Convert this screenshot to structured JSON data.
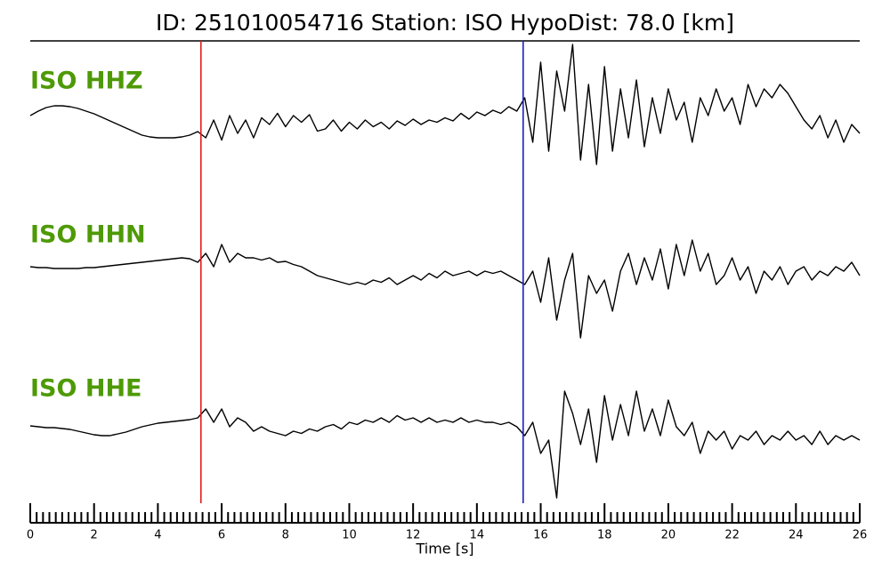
{
  "chart_data": {
    "type": "line",
    "title": "ID: 251010054716   Station: ISO   HypoDist:    78.0 [km]",
    "xlabel": "Time [s]",
    "xlim": [
      0,
      26
    ],
    "xticks": [
      0,
      2,
      4,
      6,
      8,
      10,
      12,
      14,
      16,
      18,
      20,
      22,
      24,
      26
    ],
    "xminorticks": [
      0.2,
      0.4,
      0.6,
      0.8,
      1,
      1.2,
      1.4,
      1.6,
      1.8,
      2.2,
      2.4,
      2.6,
      2.8,
      3,
      3.2,
      3.4,
      3.6,
      3.8,
      4.2,
      4.4,
      4.6,
      4.8,
      5,
      5.2,
      5.4,
      5.6,
      5.8,
      6.2,
      6.4,
      6.6,
      6.8,
      7,
      7.2,
      7.4,
      7.6,
      7.8,
      8.2,
      8.4,
      8.6,
      8.8,
      9,
      9.2,
      9.4,
      9.6,
      9.8,
      10.2,
      10.4,
      10.6,
      10.8,
      11,
      11.2,
      11.4,
      11.6,
      11.8,
      12.2,
      12.4,
      12.6,
      12.8,
      13,
      13.2,
      13.4,
      13.6,
      13.8,
      14.2,
      14.4,
      14.6,
      14.8,
      15,
      15.2,
      15.4,
      15.6,
      15.8,
      16.2,
      16.4,
      16.6,
      16.8,
      17,
      17.2,
      17.4,
      17.6,
      17.8,
      18.2,
      18.4,
      18.6,
      18.8,
      19,
      19.2,
      19.4,
      19.6,
      19.8,
      20.2,
      20.4,
      20.6,
      20.8,
      21,
      21.2,
      21.4,
      21.6,
      21.8,
      22.2,
      22.4,
      22.6,
      22.8,
      23,
      23.2,
      23.4,
      23.6,
      23.8,
      24.2,
      24.4,
      24.6,
      24.8,
      25,
      25.2,
      25.4,
      25.6,
      25.8
    ],
    "picks": [
      {
        "x": 5.35,
        "color": "#e41a1c"
      },
      {
        "x": 15.45,
        "color": "#1f1fbf"
      }
    ],
    "x": [
      0,
      0.25,
      0.5,
      0.75,
      1,
      1.25,
      1.5,
      1.75,
      2,
      2.25,
      2.5,
      2.75,
      3,
      3.25,
      3.5,
      3.75,
      4,
      4.25,
      4.5,
      4.75,
      5,
      5.25,
      5.5,
      5.75,
      6,
      6.25,
      6.5,
      6.75,
      7,
      7.25,
      7.5,
      7.75,
      8,
      8.25,
      8.5,
      8.75,
      9,
      9.25,
      9.5,
      9.75,
      10,
      10.25,
      10.5,
      10.75,
      11,
      11.25,
      11.5,
      11.75,
      12,
      12.25,
      12.5,
      12.75,
      13,
      13.25,
      13.5,
      13.75,
      14,
      14.25,
      14.5,
      14.75,
      15,
      15.25,
      15.5,
      15.75,
      16,
      16.25,
      16.5,
      16.75,
      17,
      17.25,
      17.5,
      17.75,
      18,
      18.25,
      18.5,
      18.75,
      19,
      19.25,
      19.5,
      19.75,
      20,
      20.25,
      20.5,
      20.75,
      21,
      21.25,
      21.5,
      21.75,
      22,
      22.25,
      22.5,
      22.75,
      23,
      23.25,
      23.5,
      23.75,
      24,
      24.25,
      24.5,
      24.75,
      25,
      25.25,
      25.5,
      25.75,
      26
    ],
    "label_color": "#4e9a06",
    "series": [
      {
        "name": "ISO HHZ",
        "color": "#000000",
        "values": [
          0.2,
          0.3,
          0.38,
          0.42,
          0.42,
          0.4,
          0.36,
          0.3,
          0.24,
          0.16,
          0.08,
          0.0,
          -0.08,
          -0.16,
          -0.24,
          -0.28,
          -0.3,
          -0.3,
          -0.3,
          -0.28,
          -0.24,
          -0.16,
          -0.3,
          0.1,
          -0.35,
          0.2,
          -0.2,
          0.1,
          -0.3,
          0.15,
          0.0,
          0.25,
          -0.05,
          0.2,
          0.05,
          0.22,
          -0.15,
          -0.1,
          0.1,
          -0.15,
          0.05,
          -0.1,
          0.1,
          -0.05,
          0.05,
          -0.1,
          0.08,
          -0.02,
          0.12,
          0.0,
          0.1,
          0.05,
          0.15,
          0.08,
          0.25,
          0.12,
          0.28,
          0.2,
          0.32,
          0.25,
          0.4,
          0.3,
          0.6,
          -0.4,
          1.4,
          -0.6,
          1.2,
          0.3,
          1.8,
          -0.8,
          0.9,
          -0.9,
          1.3,
          -0.6,
          0.8,
          -0.3,
          1.0,
          -0.5,
          0.6,
          -0.2,
          0.8,
          0.1,
          0.5,
          -0.4,
          0.6,
          0.2,
          0.8,
          0.3,
          0.6,
          0.0,
          0.9,
          0.4,
          0.8,
          0.6,
          0.9,
          0.7,
          0.4,
          0.1,
          -0.1,
          0.2,
          -0.3,
          0.1,
          -0.4,
          0.0,
          -0.2
        ]
      },
      {
        "name": "ISO HHN",
        "color": "#000000",
        "values": [
          0.0,
          -0.02,
          -0.02,
          -0.04,
          -0.04,
          -0.04,
          -0.04,
          -0.02,
          -0.02,
          0.0,
          0.02,
          0.04,
          0.06,
          0.08,
          0.1,
          0.12,
          0.14,
          0.16,
          0.18,
          0.2,
          0.18,
          0.1,
          0.3,
          0.0,
          0.5,
          0.1,
          0.3,
          0.2,
          0.2,
          0.15,
          0.2,
          0.1,
          0.12,
          0.05,
          0.0,
          -0.1,
          -0.2,
          -0.25,
          -0.3,
          -0.35,
          -0.4,
          -0.35,
          -0.4,
          -0.3,
          -0.35,
          -0.25,
          -0.4,
          -0.3,
          -0.2,
          -0.3,
          -0.15,
          -0.25,
          -0.1,
          -0.2,
          -0.15,
          -0.1,
          -0.2,
          -0.1,
          -0.15,
          -0.1,
          -0.2,
          -0.3,
          -0.4,
          -0.1,
          -0.8,
          0.2,
          -1.2,
          -0.3,
          0.3,
          -1.6,
          -0.2,
          -0.6,
          -0.3,
          -1.0,
          -0.1,
          0.3,
          -0.4,
          0.2,
          -0.3,
          0.4,
          -0.5,
          0.5,
          -0.2,
          0.6,
          -0.1,
          0.3,
          -0.4,
          -0.2,
          0.2,
          -0.3,
          0.0,
          -0.6,
          -0.1,
          -0.3,
          0.0,
          -0.4,
          -0.1,
          0.0,
          -0.3,
          -0.1,
          -0.2,
          0.0,
          -0.1,
          0.1,
          -0.2
        ]
      },
      {
        "name": "ISO HHE",
        "color": "#000000",
        "values": [
          0.02,
          0.0,
          -0.02,
          -0.02,
          -0.04,
          -0.06,
          -0.1,
          -0.14,
          -0.18,
          -0.2,
          -0.2,
          -0.16,
          -0.12,
          -0.06,
          0.0,
          0.04,
          0.08,
          0.1,
          0.12,
          0.14,
          0.16,
          0.2,
          0.4,
          0.1,
          0.4,
          0.0,
          0.2,
          0.1,
          -0.1,
          0.0,
          -0.1,
          -0.15,
          -0.2,
          -0.1,
          -0.15,
          -0.05,
          -0.1,
          0.0,
          0.05,
          -0.05,
          0.1,
          0.05,
          0.15,
          0.1,
          0.2,
          0.1,
          0.25,
          0.15,
          0.2,
          0.1,
          0.2,
          0.1,
          0.15,
          0.1,
          0.2,
          0.1,
          0.15,
          0.1,
          0.1,
          0.05,
          0.1,
          0.0,
          -0.2,
          0.1,
          -0.6,
          -0.3,
          -1.6,
          0.8,
          0.3,
          -0.4,
          0.4,
          -0.8,
          0.7,
          -0.3,
          0.5,
          -0.2,
          0.8,
          -0.1,
          0.4,
          -0.2,
          0.6,
          0.0,
          -0.2,
          0.1,
          -0.6,
          -0.1,
          -0.3,
          -0.1,
          -0.5,
          -0.2,
          -0.3,
          -0.1,
          -0.4,
          -0.2,
          -0.3,
          -0.1,
          -0.3,
          -0.2,
          -0.4,
          -0.1,
          -0.4,
          -0.2,
          -0.3,
          -0.2,
          -0.3
        ]
      }
    ]
  }
}
